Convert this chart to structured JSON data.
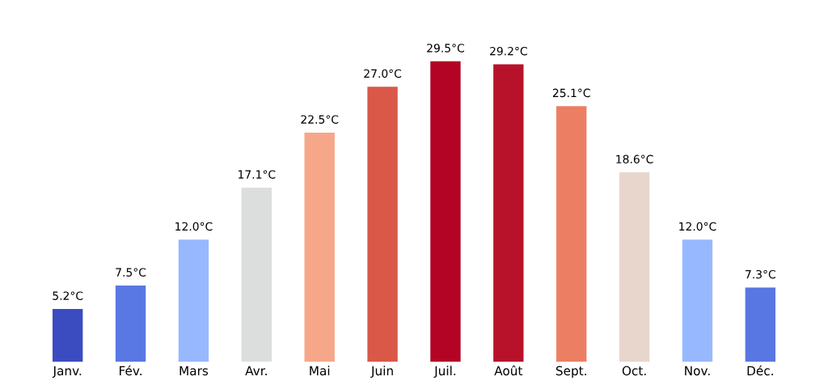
{
  "chart_data": {
    "type": "bar",
    "categories": [
      "Janv.",
      "Fév.",
      "Mars",
      "Avr.",
      "Mai",
      "Juin",
      "Juil.",
      "Août",
      "Sept.",
      "Oct.",
      "Nov.",
      "Déc."
    ],
    "values": [
      5.2,
      7.5,
      12.0,
      17.1,
      22.5,
      27.0,
      29.5,
      29.2,
      25.1,
      18.6,
      12.0,
      7.3
    ],
    "value_labels": [
      "5.2°C",
      "7.5°C",
      "12.0°C",
      "17.1°C",
      "22.5°C",
      "27.0°C",
      "29.5°C",
      "29.2°C",
      "25.1°C",
      "18.6°C",
      "12.0°C",
      "7.3°C"
    ],
    "colors": [
      "#3b4cc0",
      "#5a78e4",
      "#97b8ff",
      "#dcdddd",
      "#f6a789",
      "#d95847",
      "#b40426",
      "#b8122a",
      "#ec7f63",
      "#e8d6cc",
      "#97b8ff",
      "#5977e3"
    ],
    "grid": false,
    "legend": false
  }
}
